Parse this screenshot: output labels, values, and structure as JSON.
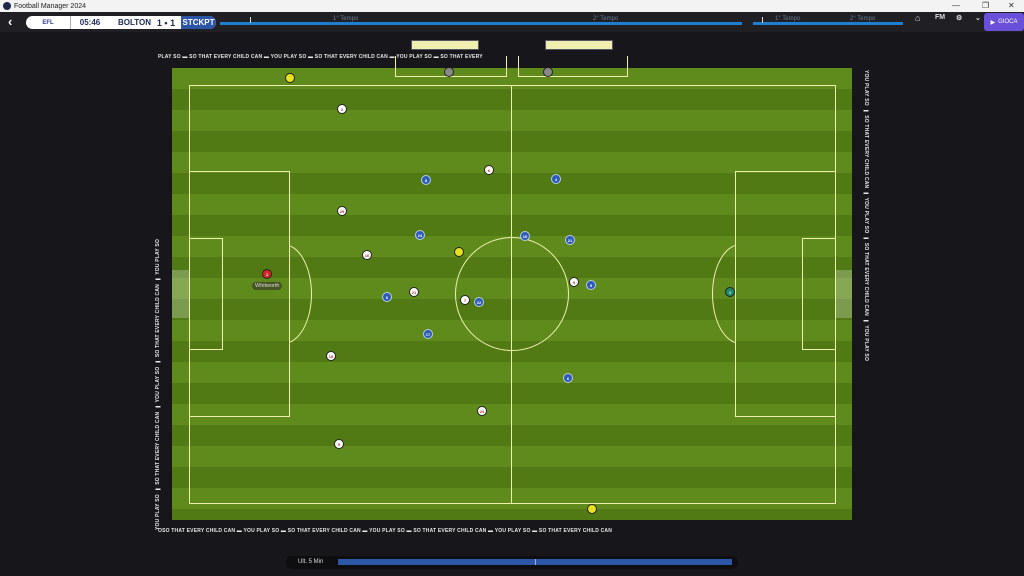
{
  "window": {
    "title": "Football Manager 2024",
    "minimize": "—",
    "restore": "❐",
    "close": "✕"
  },
  "header": {
    "back_icon": "chevron-left",
    "competition": "EFL",
    "clock": "05:46",
    "home_team": "BOLTON",
    "score": "1 • 1",
    "away_team": "STCKPT",
    "timeline": {
      "first_half": "1° Tempo",
      "second_half": "2° Tempo"
    },
    "buttons": {
      "home": "⌂",
      "fm": "FM",
      "settings": "⚙",
      "dropdown": "⌄",
      "play": "GIOCA"
    }
  },
  "ads": {
    "top": "PLAY SO ▬ SO THAT EVERY CHILD CAN ▬ YOU PLAY SO ▬          SO THAT EVERY CHILD CAN ▬ YOU PLAY SO ▬ SO THAT EVERY",
    "side": "YOU PLAY SO ▬ SO THAT EVERY CHILD CAN ▬ YOU PLAY SO ▬ SO THAT EVERY CHILD CAN ▬ YOU PLAY SO",
    "bottom": "OSO THAT EVERY CHILD CAN ▬ YOU PLAY SO ▬ SO THAT EVERY CHILD CAN ▬ YOU PLAY SO ▬ SO THAT EVERY CHILD CAN ▬ YOU PLAY SO ▬ SO THAT EVERY CHILD CAN"
  },
  "match": {
    "highlighted_player": "Whitworth",
    "colors": {
      "home": "#ffffff",
      "away": "#2d5bb8",
      "referee": "#e8e020"
    },
    "home_players": [
      {
        "n": "1",
        "gk": true
      },
      {
        "n": "2"
      },
      {
        "n": "6"
      },
      {
        "n": "29"
      },
      {
        "n": "16"
      },
      {
        "n": "21"
      },
      {
        "n": "7"
      },
      {
        "n": "18"
      },
      {
        "n": "23"
      },
      {
        "n": "5"
      },
      {
        "n": "9"
      }
    ],
    "away_players": [
      {
        "n": "1",
        "gk": true
      },
      {
        "n": "8"
      },
      {
        "n": "24"
      },
      {
        "n": "6"
      },
      {
        "n": "22"
      },
      {
        "n": "17"
      },
      {
        "n": "4"
      },
      {
        "n": "10"
      },
      {
        "n": "21"
      },
      {
        "n": "5"
      },
      {
        "n": "6"
      }
    ]
  },
  "footer": {
    "label": "Ult. 5 Min",
    "momentum_home_share": 0.5
  }
}
